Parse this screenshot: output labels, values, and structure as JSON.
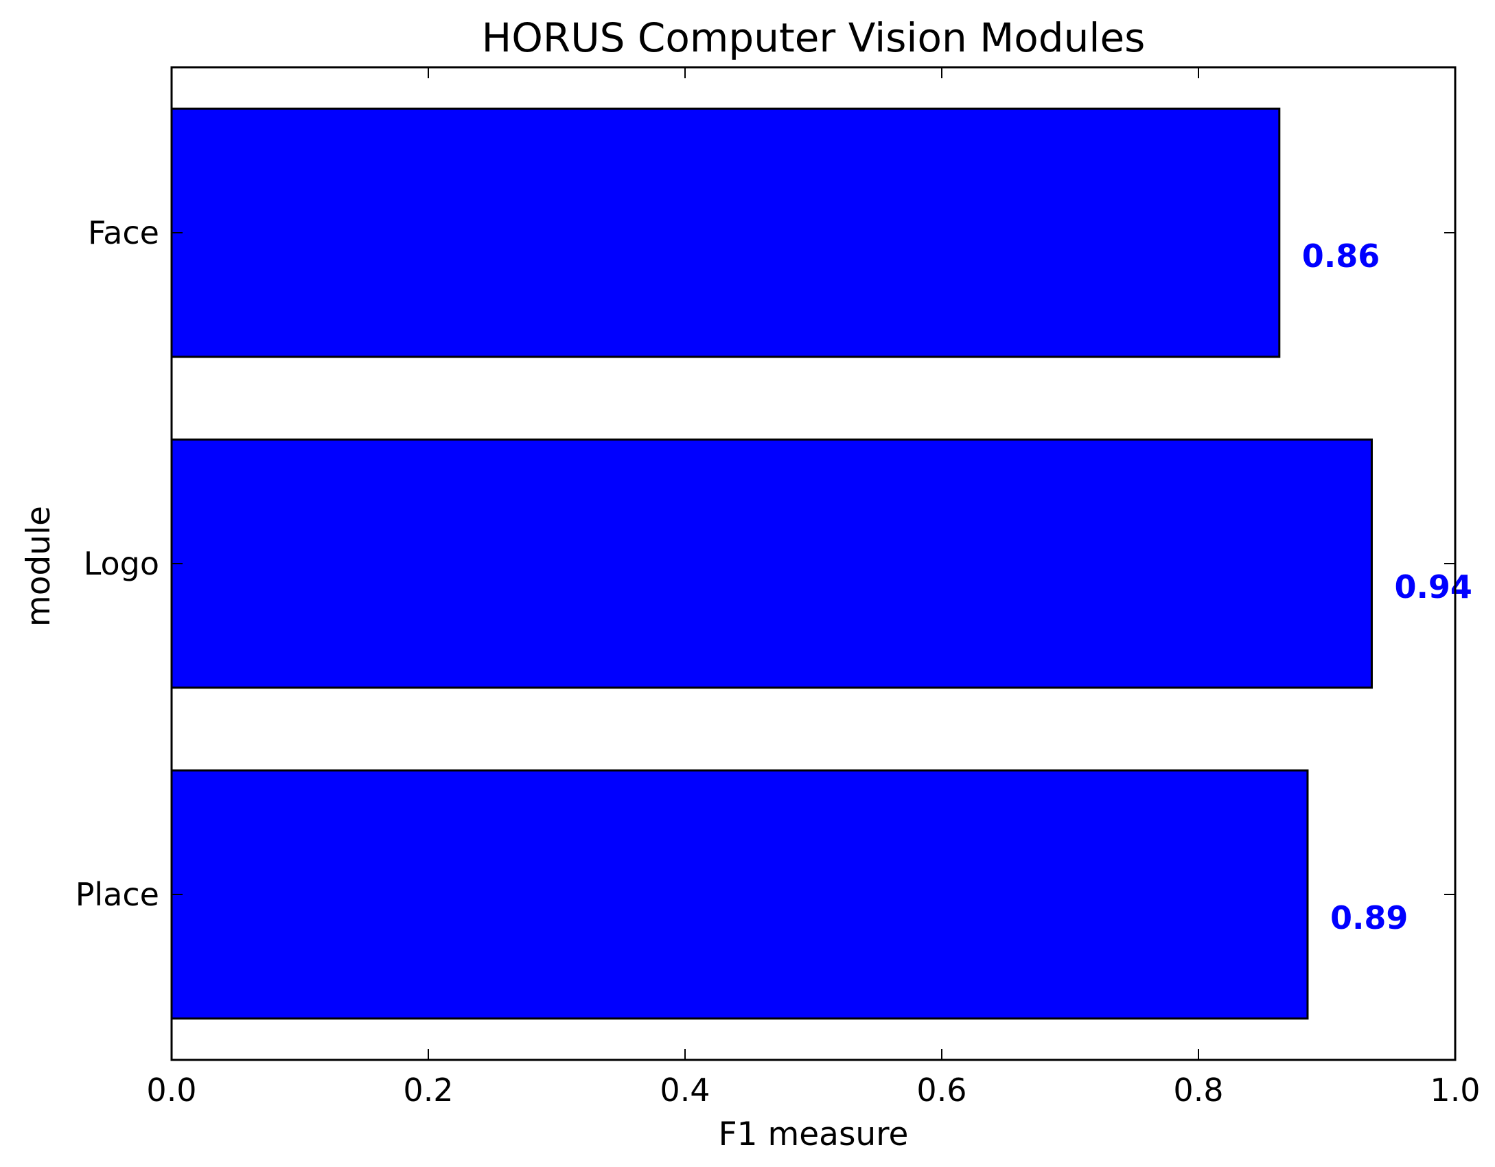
{
  "chart_data": {
    "type": "bar",
    "orientation": "horizontal",
    "title": "HORUS Computer Vision Modules",
    "xlabel": "F1 measure",
    "ylabel": "module",
    "categories": [
      "Face",
      "Logo",
      "Place"
    ],
    "values": [
      0.863,
      0.935,
      0.885
    ],
    "data_labels": [
      "0.86",
      "0.94",
      "0.89"
    ],
    "xlim": [
      0.0,
      1.0
    ],
    "xticks": [
      "0.0",
      "0.2",
      "0.4",
      "0.6",
      "0.8",
      "1.0"
    ],
    "grid": false,
    "legend": "none",
    "colors": {
      "bar": "#0000ff",
      "bar_edge": "#000000",
      "label": "#0000ff"
    }
  }
}
